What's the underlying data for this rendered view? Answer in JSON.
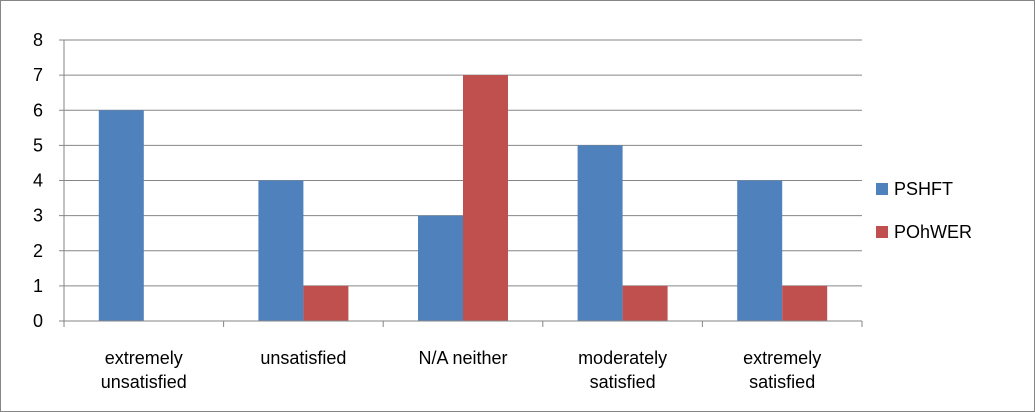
{
  "chart_data": {
    "type": "bar",
    "categories": [
      [
        "extremely",
        "unsatisfied"
      ],
      [
        "unsatisfied"
      ],
      [
        "N/A neither"
      ],
      [
        "moderately",
        "satisfied"
      ],
      [
        "extremely",
        "satisfied"
      ]
    ],
    "series": [
      {
        "name": "PSHFT",
        "values": [
          6,
          4,
          3,
          5,
          4
        ],
        "color": "#4F81BD"
      },
      {
        "name": "POhWER",
        "values": [
          0,
          1,
          7,
          1,
          1
        ],
        "color": "#C0504D"
      }
    ],
    "title": "",
    "xlabel": "",
    "ylabel": "",
    "ylim": [
      0,
      8
    ],
    "yticks": [
      0,
      1,
      2,
      3,
      4,
      5,
      6,
      7,
      8
    ],
    "grid": true,
    "legend_position": "right"
  }
}
